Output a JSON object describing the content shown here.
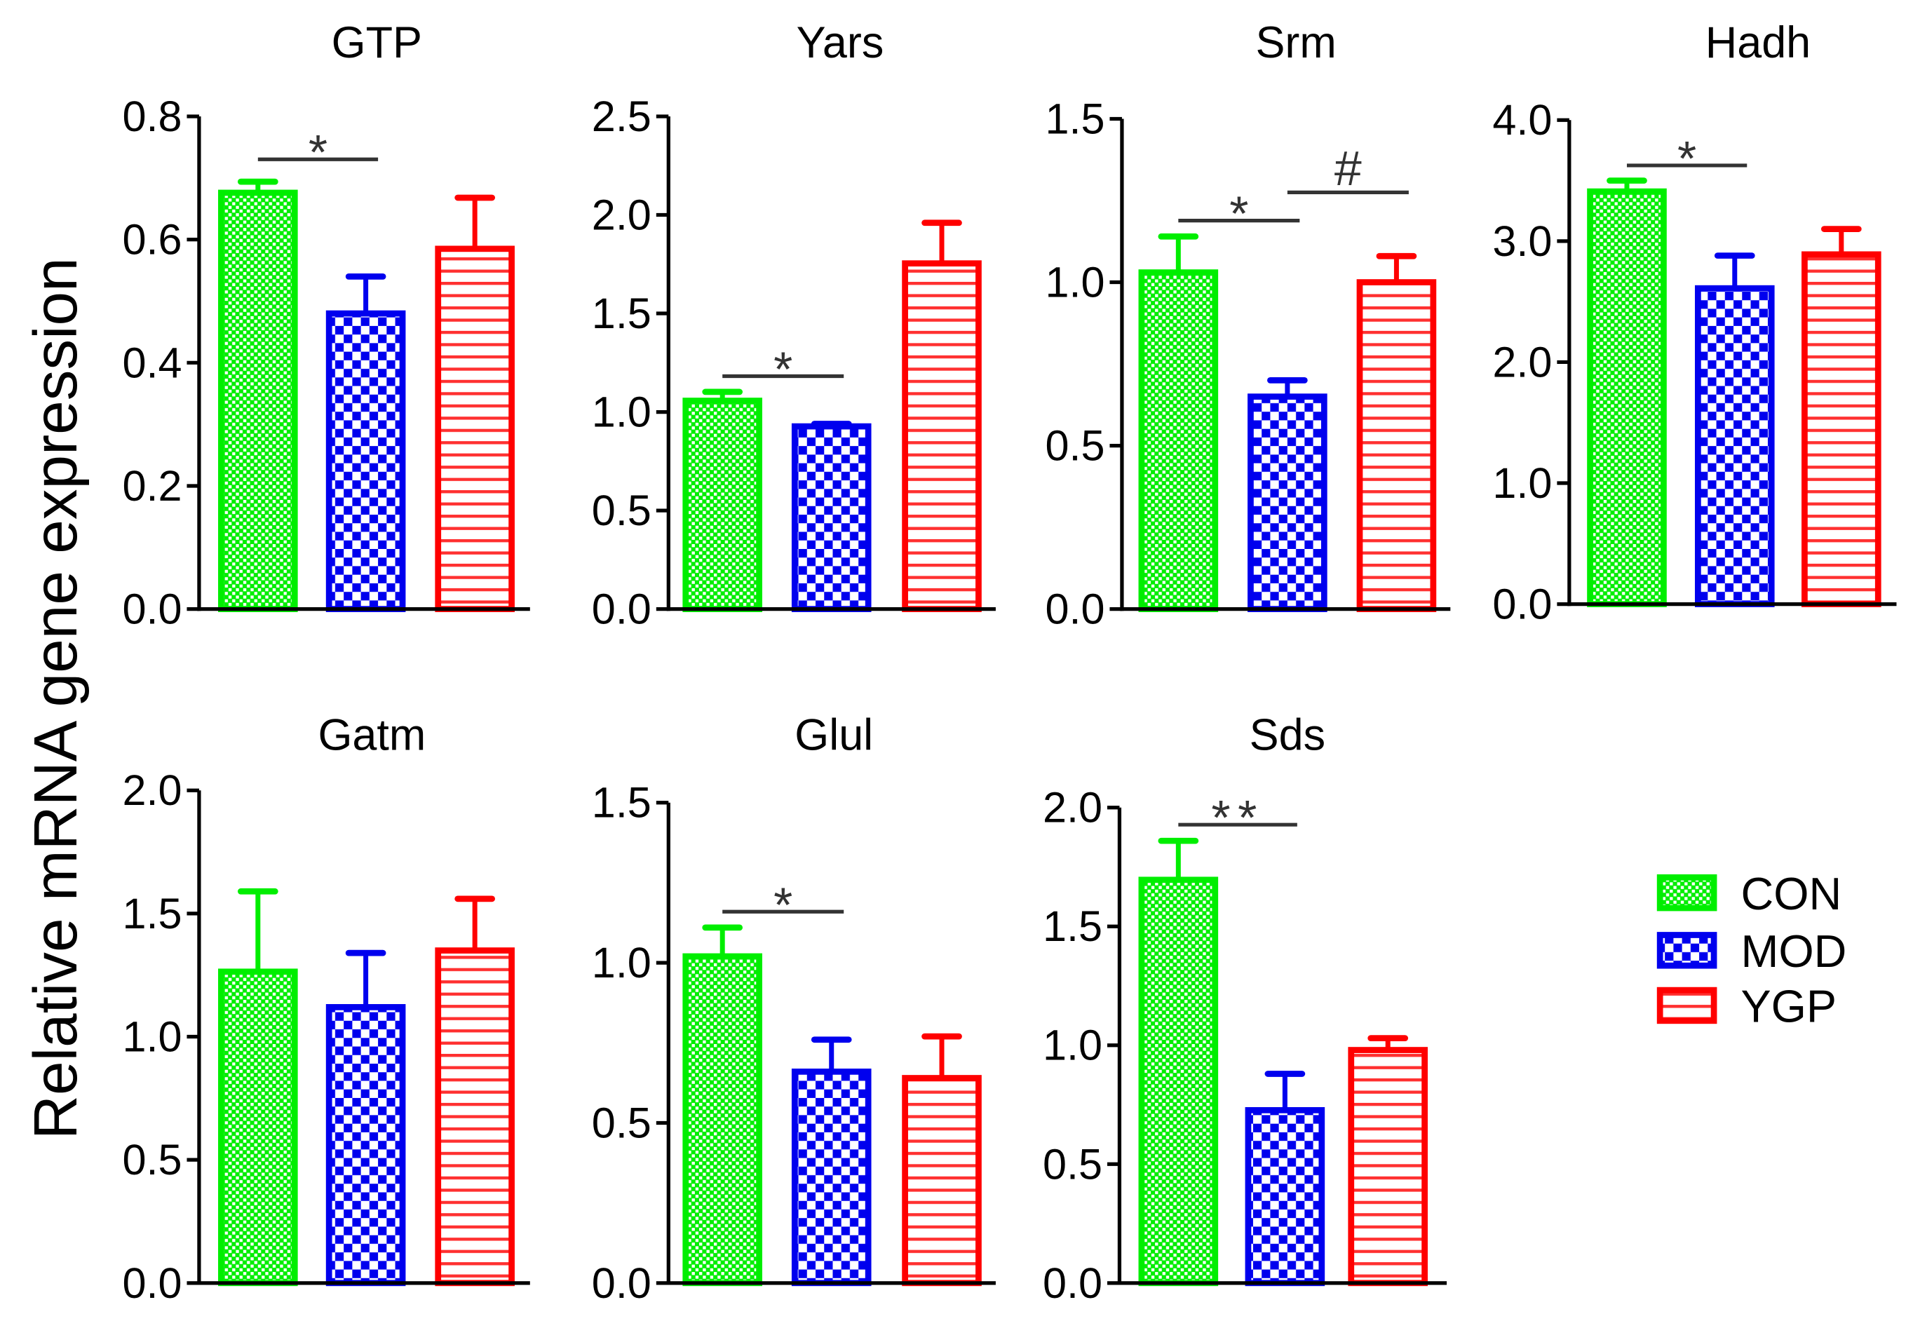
{
  "chart_data": {
    "type": "bar",
    "ylabel": "Relative mRNA gene expression",
    "groups": [
      "CON",
      "MOD",
      "YGP"
    ],
    "colors": {
      "CON": "#00ee00",
      "MOD": "#0000ee",
      "YGP": "#ff0000",
      "sig": "#333333"
    },
    "legend": {
      "position": "bottom-right",
      "entries": [
        "CON",
        "MOD",
        "YGP"
      ]
    },
    "panels": [
      {
        "title": "GTP",
        "ylim": [
          0,
          0.8
        ],
        "ticks": [
          "0.0",
          "0.2",
          "0.4",
          "0.6",
          "0.8"
        ],
        "tick_values": [
          0,
          0.2,
          0.4,
          0.6,
          0.8
        ],
        "values": [
          0.676,
          0.48,
          0.585
        ],
        "errors": [
          0.018,
          0.06,
          0.083
        ],
        "annotations": [
          {
            "label": "*",
            "from": 0,
            "to": 1
          }
        ]
      },
      {
        "title": "Yars",
        "ylim": [
          0,
          2.5
        ],
        "ticks": [
          "0.0",
          "0.5",
          "1.0",
          "1.5",
          "2.0",
          "2.5"
        ],
        "tick_values": [
          0,
          0.5,
          1,
          1.5,
          2,
          2.5
        ],
        "values": [
          1.057,
          0.927,
          1.754
        ],
        "errors": [
          0.045,
          0.013,
          0.206
        ],
        "annotations": [
          {
            "label": "*",
            "from": 0,
            "to": 1
          }
        ]
      },
      {
        "title": "Srm",
        "ylim": [
          0,
          1.5
        ],
        "ticks": [
          "0.0",
          "0.5",
          "1.0",
          "1.5"
        ],
        "tick_values": [
          0,
          0.5,
          1,
          1.5
        ],
        "values": [
          1.03,
          0.65,
          1.0
        ],
        "errors": [
          0.11,
          0.05,
          0.08
        ],
        "annotations": [
          {
            "label": "*",
            "from": 0,
            "to": 1
          },
          {
            "label": "#",
            "from": 1,
            "to": 2
          }
        ]
      },
      {
        "title": "Hadh",
        "ylim": [
          0,
          4.0
        ],
        "ticks": [
          "0.0",
          "1.0",
          "2.0",
          "3.0",
          "4.0"
        ],
        "tick_values": [
          0,
          1,
          2,
          3,
          4
        ],
        "values": [
          3.41,
          2.61,
          2.89
        ],
        "errors": [
          0.09,
          0.27,
          0.21
        ],
        "annotations": [
          {
            "label": "*",
            "from": 0,
            "to": 1
          }
        ]
      },
      {
        "title": "Gatm",
        "ylim": [
          0,
          2.0
        ],
        "ticks": [
          "0.0",
          "0.5",
          "1.0",
          "1.5",
          "2.0"
        ],
        "tick_values": [
          0,
          0.5,
          1,
          1.5,
          2
        ],
        "values": [
          1.264,
          1.12,
          1.35
        ],
        "errors": [
          0.326,
          0.22,
          0.21
        ],
        "annotations": []
      },
      {
        "title": "Glul",
        "ylim": [
          0,
          1.5
        ],
        "ticks": [
          "0.0",
          "0.5",
          "1.0",
          "1.5"
        ],
        "tick_values": [
          0,
          0.5,
          1,
          1.5
        ],
        "values": [
          1.02,
          0.66,
          0.64
        ],
        "errors": [
          0.09,
          0.1,
          0.13
        ],
        "annotations": [
          {
            "label": "*",
            "from": 0,
            "to": 1
          }
        ]
      },
      {
        "title": "Sds",
        "ylim": [
          0,
          2.0
        ],
        "ticks": [
          "0.0",
          "0.5",
          "1.0",
          "1.5",
          "2.0"
        ],
        "tick_values": [
          0,
          0.5,
          1,
          1.5,
          2
        ],
        "values": [
          1.696,
          0.727,
          0.98
        ],
        "errors": [
          0.164,
          0.153,
          0.05
        ],
        "annotations": [
          {
            "label": "**",
            "from": 0,
            "to": 1
          }
        ]
      }
    ]
  }
}
